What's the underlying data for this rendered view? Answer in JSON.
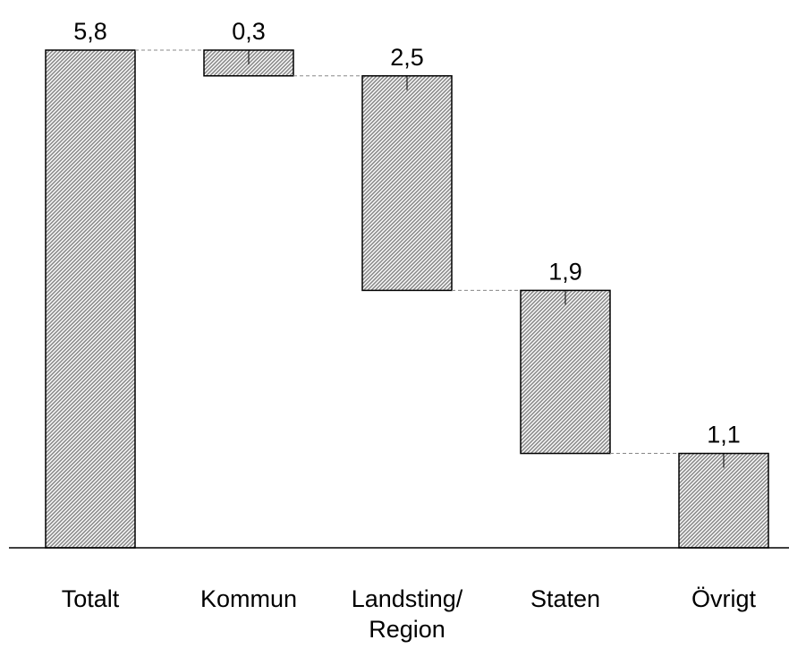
{
  "chart_data": {
    "type": "waterfall",
    "categories": [
      "Totalt",
      "Kommun",
      "Landsting/ Region",
      "Staten",
      "Övrigt"
    ],
    "values": [
      5.8,
      0.3,
      2.5,
      1.9,
      1.1
    ],
    "value_labels": [
      "5,8",
      "0,3",
      "2,5",
      "1,9",
      "1,1"
    ],
    "color": "#c8c8c8"
  }
}
